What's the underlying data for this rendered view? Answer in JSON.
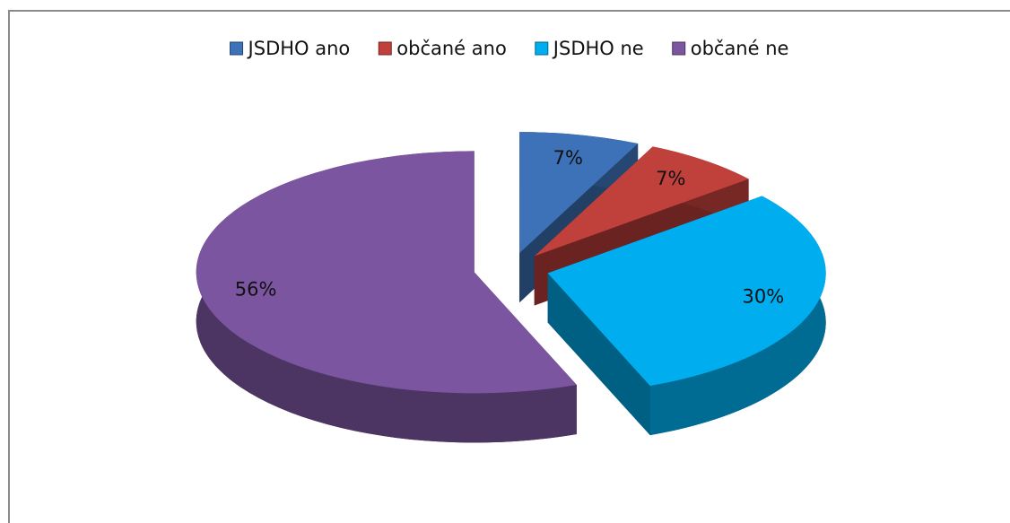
{
  "chart_data": {
    "type": "pie3d",
    "categories": [
      "JSDHO ano",
      "občané ano",
      "JSDHO ne",
      "občané ne"
    ],
    "values": [
      7,
      7,
      30,
      56
    ],
    "value_labels": [
      "7%",
      "7%",
      "30%",
      "56%"
    ],
    "colors": [
      "#3e72b8",
      "#c0403c",
      "#00aeef",
      "#7b559f"
    ],
    "legend": "top"
  }
}
